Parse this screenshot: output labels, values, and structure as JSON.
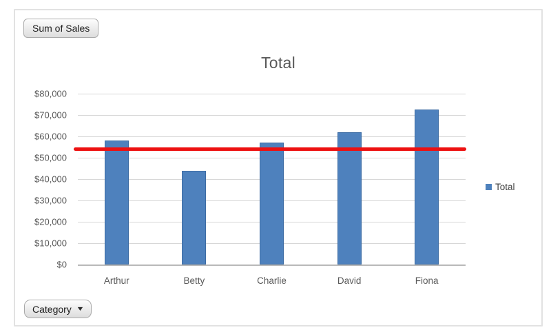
{
  "chart": {
    "value_field_button": "Sum of Sales",
    "category_field_button": {
      "label": "Category",
      "arrow": "▼"
    },
    "title": "Total",
    "legend": [
      "Total"
    ]
  },
  "chart_data": {
    "type": "bar",
    "title": "Total",
    "categories": [
      "Arthur",
      "Betty",
      "Charlie",
      "David",
      "Fiona"
    ],
    "series": [
      {
        "name": "Total",
        "values": [
          58000,
          44000,
          57000,
          62000,
          72500
        ]
      }
    ],
    "target_line": {
      "value": 54000,
      "color": "#ED1111"
    },
    "y_ticks": {
      "values": [
        0,
        10000,
        20000,
        30000,
        40000,
        50000,
        60000,
        70000,
        80000
      ],
      "labels": [
        "$0",
        "$10,000",
        "$20,000",
        "$30,000",
        "$40,000",
        "$50,000",
        "$60,000",
        "$70,000",
        "$80,000"
      ]
    },
    "ylim": [
      0,
      80000
    ],
    "xlabel": "",
    "ylabel": "",
    "grid": true,
    "legend_position": "right",
    "bar_color": "#4E81BD",
    "text_color": "#595959"
  }
}
